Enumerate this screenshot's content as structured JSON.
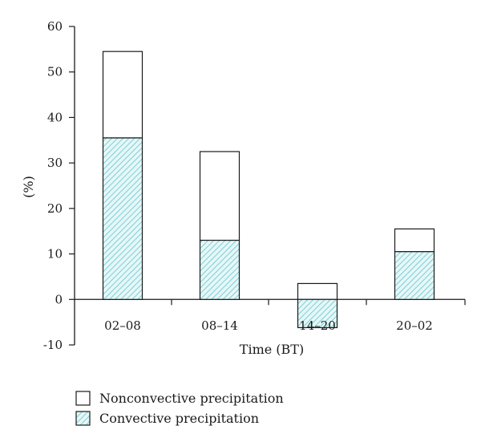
{
  "chart_data": {
    "type": "bar",
    "stacked": true,
    "categories": [
      "02–08",
      "08–14",
      "14–20",
      "20–02"
    ],
    "series": [
      {
        "name": "Convective precipitation",
        "values": [
          35.5,
          13,
          -6.2,
          10.5
        ],
        "fill": "hatched",
        "color": "#7ccfd4"
      },
      {
        "name": "Nonconvective precipitation",
        "values": [
          19,
          19.5,
          3.5,
          5
        ],
        "fill": "none",
        "color": "#ffffff"
      }
    ],
    "xlabel": "Time (BT)",
    "ylabel": "(%)",
    "ylim": [
      -10,
      60
    ],
    "yticks": [
      -10,
      0,
      10,
      20,
      30,
      40,
      50,
      60
    ],
    "grid": false,
    "legend_position": "bottom-left"
  }
}
